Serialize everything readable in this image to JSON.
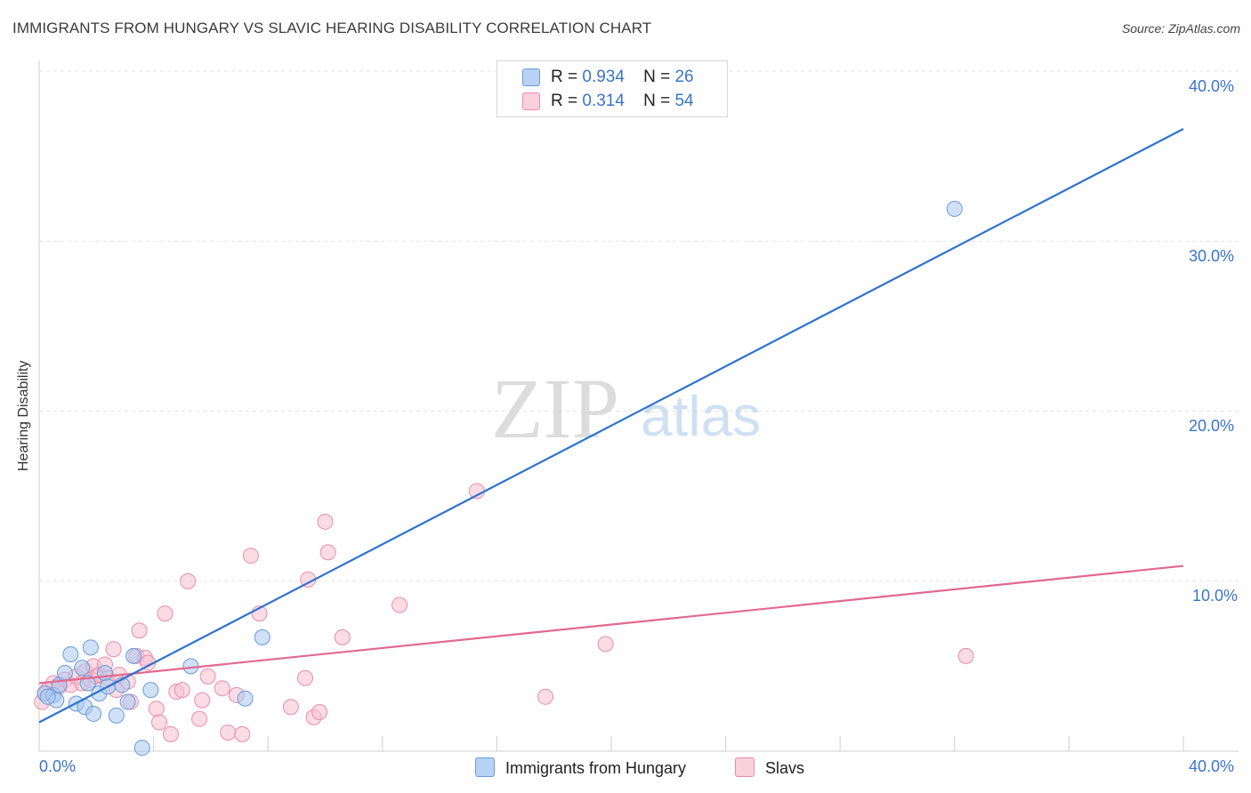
{
  "header": {
    "title": "IMMIGRANTS FROM HUNGARY VS SLAVIC HEARING DISABILITY CORRELATION CHART",
    "source": "Source: ZipAtlas.com"
  },
  "watermark": {
    "zip": "ZIP",
    "atlas": "atlas"
  },
  "legend": {
    "items": [
      {
        "r_label": "R =",
        "r_value": "0.934",
        "n_label": "N =",
        "n_value": "26"
      },
      {
        "r_label": "R =",
        "r_value": "0.314",
        "n_label": "N =",
        "n_value": "54"
      }
    ]
  },
  "bottom_legend": {
    "hungary": "Immigrants from Hungary",
    "slavs": "Slavs"
  },
  "colors": {
    "hungary_fill": "#a9c8f0",
    "hungary_stroke": "#6a9ad8",
    "hungary_line": "#2f72d0",
    "slavs_fill": "#f8bfd0",
    "slavs_stroke": "#e98cab",
    "slavs_line": "#e2698f",
    "tick_label": "#3a74c8"
  },
  "chart_data": {
    "type": "scatter",
    "title": "IMMIGRANTS FROM HUNGARY VS SLAVIC HEARING DISABILITY CORRELATION CHART",
    "xlabel": "",
    "ylabel": "Hearing Disability",
    "xlim": [
      0,
      40
    ],
    "ylim": [
      0,
      40
    ],
    "x_tick_labels": [
      "0.0%",
      "40.0%"
    ],
    "y_ticks": [
      10,
      20,
      30,
      40
    ],
    "y_tick_labels": [
      "10.0%",
      "20.0%",
      "30.0%",
      "40.0%"
    ],
    "grid": true,
    "series": [
      {
        "name": "Immigrants from Hungary",
        "r": 0.934,
        "n": 26,
        "trend": {
          "x": [
            0,
            40
          ],
          "y": [
            1.7,
            36.6
          ]
        },
        "points": [
          {
            "x": 0.2,
            "y": 3.4
          },
          {
            "x": 0.5,
            "y": 3.3
          },
          {
            "x": 0.6,
            "y": 3.0
          },
          {
            "x": 0.7,
            "y": 3.9
          },
          {
            "x": 0.9,
            "y": 4.6
          },
          {
            "x": 1.1,
            "y": 5.7
          },
          {
            "x": 1.3,
            "y": 2.8
          },
          {
            "x": 1.5,
            "y": 4.9
          },
          {
            "x": 1.6,
            "y": 2.6
          },
          {
            "x": 1.7,
            "y": 4.0
          },
          {
            "x": 1.8,
            "y": 6.1
          },
          {
            "x": 1.9,
            "y": 2.2
          },
          {
            "x": 2.1,
            "y": 3.4
          },
          {
            "x": 2.3,
            "y": 4.6
          },
          {
            "x": 2.4,
            "y": 3.8
          },
          {
            "x": 2.7,
            "y": 2.1
          },
          {
            "x": 2.9,
            "y": 3.9
          },
          {
            "x": 3.1,
            "y": 2.9
          },
          {
            "x": 3.3,
            "y": 5.6
          },
          {
            "x": 3.6,
            "y": 0.2
          },
          {
            "x": 3.9,
            "y": 3.6
          },
          {
            "x": 5.3,
            "y": 5.0
          },
          {
            "x": 7.2,
            "y": 3.1
          },
          {
            "x": 7.8,
            "y": 6.7
          },
          {
            "x": 32.0,
            "y": 31.9
          },
          {
            "x": 0.3,
            "y": 3.2
          }
        ]
      },
      {
        "name": "Slavs",
        "r": 0.314,
        "n": 54,
        "trend": {
          "x": [
            0,
            40
          ],
          "y": [
            4.0,
            10.9
          ]
        },
        "points": [
          {
            "x": 0.1,
            "y": 2.9
          },
          {
            "x": 0.3,
            "y": 3.6
          },
          {
            "x": 0.5,
            "y": 4.0
          },
          {
            "x": 0.7,
            "y": 3.8
          },
          {
            "x": 0.9,
            "y": 4.2
          },
          {
            "x": 1.1,
            "y": 3.9
          },
          {
            "x": 1.3,
            "y": 4.4
          },
          {
            "x": 1.5,
            "y": 4.0
          },
          {
            "x": 1.6,
            "y": 4.7
          },
          {
            "x": 1.8,
            "y": 4.2
          },
          {
            "x": 1.9,
            "y": 5.0
          },
          {
            "x": 2.0,
            "y": 4.4
          },
          {
            "x": 2.1,
            "y": 4.5
          },
          {
            "x": 2.3,
            "y": 5.1
          },
          {
            "x": 2.4,
            "y": 4.3
          },
          {
            "x": 2.6,
            "y": 6.0
          },
          {
            "x": 2.7,
            "y": 3.6
          },
          {
            "x": 2.8,
            "y": 4.5
          },
          {
            "x": 3.1,
            "y": 4.1
          },
          {
            "x": 3.2,
            "y": 2.9
          },
          {
            "x": 3.4,
            "y": 5.6
          },
          {
            "x": 3.5,
            "y": 7.1
          },
          {
            "x": 3.7,
            "y": 5.5
          },
          {
            "x": 3.8,
            "y": 5.2
          },
          {
            "x": 4.1,
            "y": 2.5
          },
          {
            "x": 4.2,
            "y": 1.7
          },
          {
            "x": 4.4,
            "y": 8.1
          },
          {
            "x": 4.6,
            "y": 1.0
          },
          {
            "x": 4.8,
            "y": 3.5
          },
          {
            "x": 5.0,
            "y": 3.6
          },
          {
            "x": 5.2,
            "y": 10.0
          },
          {
            "x": 5.6,
            "y": 1.9
          },
          {
            "x": 5.7,
            "y": 3.0
          },
          {
            "x": 5.9,
            "y": 4.4
          },
          {
            "x": 6.4,
            "y": 3.7
          },
          {
            "x": 6.6,
            "y": 1.1
          },
          {
            "x": 6.9,
            "y": 3.3
          },
          {
            "x": 7.1,
            "y": 1.0
          },
          {
            "x": 7.4,
            "y": 11.5
          },
          {
            "x": 7.7,
            "y": 8.1
          },
          {
            "x": 8.8,
            "y": 2.6
          },
          {
            "x": 9.3,
            "y": 4.3
          },
          {
            "x": 9.4,
            "y": 10.1
          },
          {
            "x": 9.6,
            "y": 2.0
          },
          {
            "x": 9.8,
            "y": 2.3
          },
          {
            "x": 10.0,
            "y": 13.5
          },
          {
            "x": 10.1,
            "y": 11.7
          },
          {
            "x": 10.6,
            "y": 6.7
          },
          {
            "x": 12.6,
            "y": 8.6
          },
          {
            "x": 15.3,
            "y": 15.3
          },
          {
            "x": 17.7,
            "y": 3.2
          },
          {
            "x": 19.8,
            "y": 6.3
          },
          {
            "x": 32.4,
            "y": 5.6
          },
          {
            "x": 0.2,
            "y": 3.4
          }
        ]
      }
    ]
  }
}
